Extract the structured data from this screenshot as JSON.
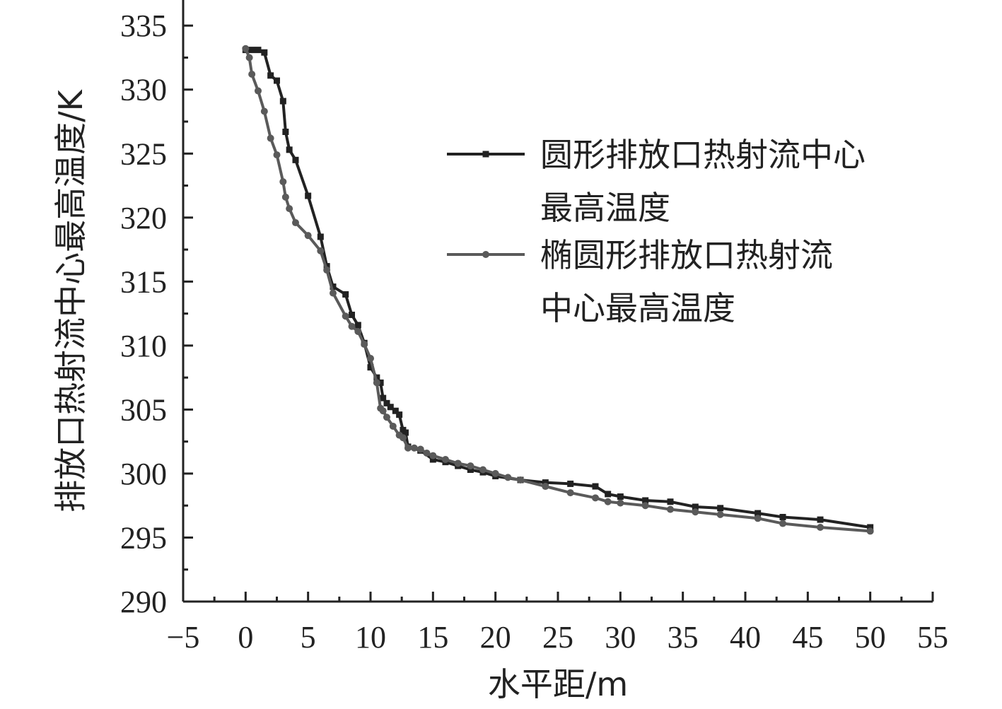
{
  "chart_data": {
    "type": "line",
    "xlabel": "水平距/m",
    "ylabel": "排放口热射流中心最高温度/K",
    "xlim": [
      -5,
      55
    ],
    "ylim": [
      290,
      337
    ],
    "x_ticks": [
      "−5",
      "0",
      "5",
      "10",
      "15",
      "20",
      "25",
      "30",
      "35",
      "40",
      "45",
      "50",
      "55"
    ],
    "y_ticks": [
      "290",
      "295",
      "300",
      "305",
      "310",
      "315",
      "320",
      "325",
      "330",
      "335"
    ],
    "grid": false,
    "legend_position": "right",
    "series": [
      {
        "name": "圆形排放口热射流中心最高温度",
        "legend_lines": [
          "圆形排放口热射流中心",
          "最高温度"
        ],
        "color": "#222222",
        "marker": "square",
        "x": [
          0,
          0.5,
          1,
          1.5,
          2,
          2.5,
          3,
          3.2,
          3.5,
          4,
          5,
          6,
          6.5,
          7,
          8,
          8.5,
          9,
          9.5,
          10,
          10.5,
          10.8,
          11,
          11.3,
          11.6,
          12,
          12.3,
          12.6,
          12.8,
          13,
          14,
          15,
          16,
          17,
          18,
          19,
          20,
          22,
          24,
          26,
          28,
          29,
          30,
          32,
          34,
          36,
          38,
          41,
          43,
          46,
          50
        ],
        "y": [
          333.1,
          333.1,
          333.1,
          332.9,
          331.1,
          330.7,
          329.1,
          326.7,
          325.3,
          324.5,
          321.7,
          318.5,
          316.2,
          314.6,
          314,
          312.4,
          311.6,
          310.2,
          308.3,
          307.5,
          307.1,
          305.9,
          305.5,
          305.2,
          304.9,
          304.6,
          303.4,
          303.2,
          302.1,
          301.8,
          301.1,
          300.9,
          300.6,
          300.3,
          300.1,
          299.8,
          299.5,
          299.3,
          299.2,
          299,
          298.4,
          298.2,
          297.9,
          297.8,
          297.4,
          297.3,
          296.9,
          296.6,
          296.4,
          295.8
        ]
      },
      {
        "name": "椭圆形排放口热射流中心最高温度",
        "legend_lines": [
          "椭圆形排放口热射流",
          "中心最高温度"
        ],
        "color": "#5a5a5a",
        "marker": "circle",
        "x": [
          0,
          0.3,
          0.5,
          1,
          1.5,
          2,
          2.5,
          3,
          3.2,
          3.5,
          4,
          5,
          6,
          6.5,
          7,
          8,
          8.5,
          9,
          9.5,
          10,
          10.5,
          10.8,
          11,
          11.3,
          11.8,
          12.3,
          12.6,
          13,
          13.5,
          14,
          14.5,
          15,
          16,
          17,
          18,
          19,
          20,
          21,
          22,
          24,
          26,
          28,
          29,
          30,
          32,
          34,
          36,
          38,
          41,
          43,
          46,
          50
        ],
        "y": [
          333.2,
          332.5,
          331.2,
          329.9,
          328.3,
          326.2,
          324.9,
          322.8,
          321.6,
          320.7,
          319.6,
          318.6,
          317.4,
          315.9,
          314.1,
          312.3,
          311.5,
          311.1,
          310.1,
          309,
          307.1,
          305.1,
          304.9,
          304.4,
          303.7,
          303,
          302.8,
          302,
          302,
          301.9,
          301.6,
          301.4,
          301.1,
          300.8,
          300.6,
          300.3,
          300,
          299.7,
          299.5,
          299,
          298.5,
          298.1,
          297.8,
          297.7,
          297.5,
          297.2,
          297,
          296.8,
          296.5,
          296.1,
          295.8,
          295.5
        ]
      }
    ]
  }
}
